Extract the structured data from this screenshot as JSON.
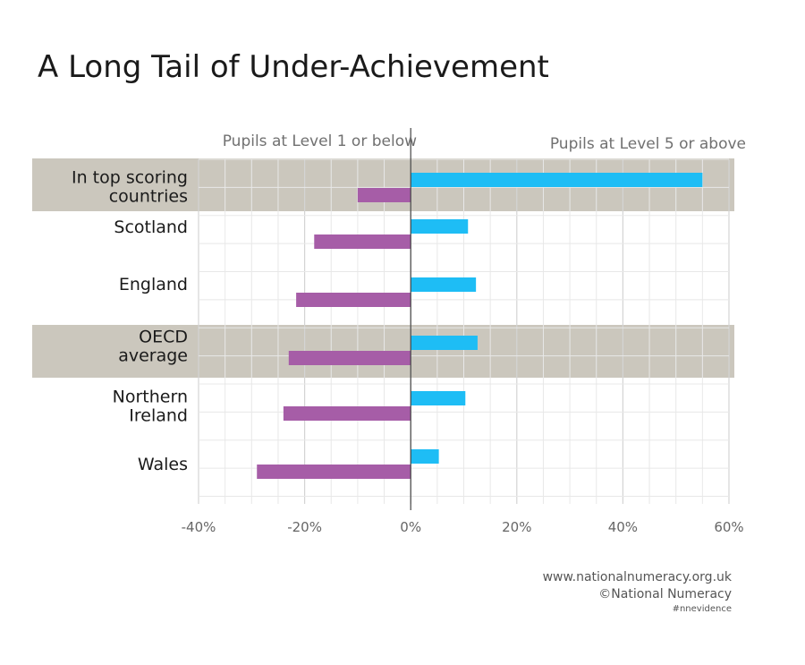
{
  "chart_data": {
    "type": "bar",
    "title": "A Long Tail of Under-Achievement",
    "categories": [
      [
        "In top scoring",
        "countries"
      ],
      [
        "Scotland"
      ],
      [
        "England"
      ],
      [
        "OECD",
        "average"
      ],
      [
        "Northern",
        "Ireland"
      ],
      [
        "Wales"
      ]
    ],
    "highlighted_categories": [
      0,
      3
    ],
    "series": [
      {
        "name": "Pupils at Level 5 or above",
        "values": [
          55,
          10.8,
          12.3,
          12.6,
          10.3,
          5.3
        ],
        "color": "#1ebdf5"
      },
      {
        "name": "Pupils at Level 1 or below",
        "values": [
          -10,
          -18.2,
          -21.6,
          -23,
          -24,
          -29
        ],
        "color": "#a65da7"
      }
    ],
    "xlim": [
      -40,
      60
    ],
    "xticks": [
      -40,
      -20,
      0,
      20,
      40,
      60
    ],
    "xtick_labels": [
      "-40%",
      "-20%",
      "0%",
      "20%",
      "40%",
      "60%"
    ],
    "grid": true,
    "highlight_color": "#cbc7bd"
  },
  "footer": {
    "url": "www.nationalnumeracy.org.uk",
    "copyright": "©National Numeracy",
    "hashtag": "#nnevidence"
  }
}
